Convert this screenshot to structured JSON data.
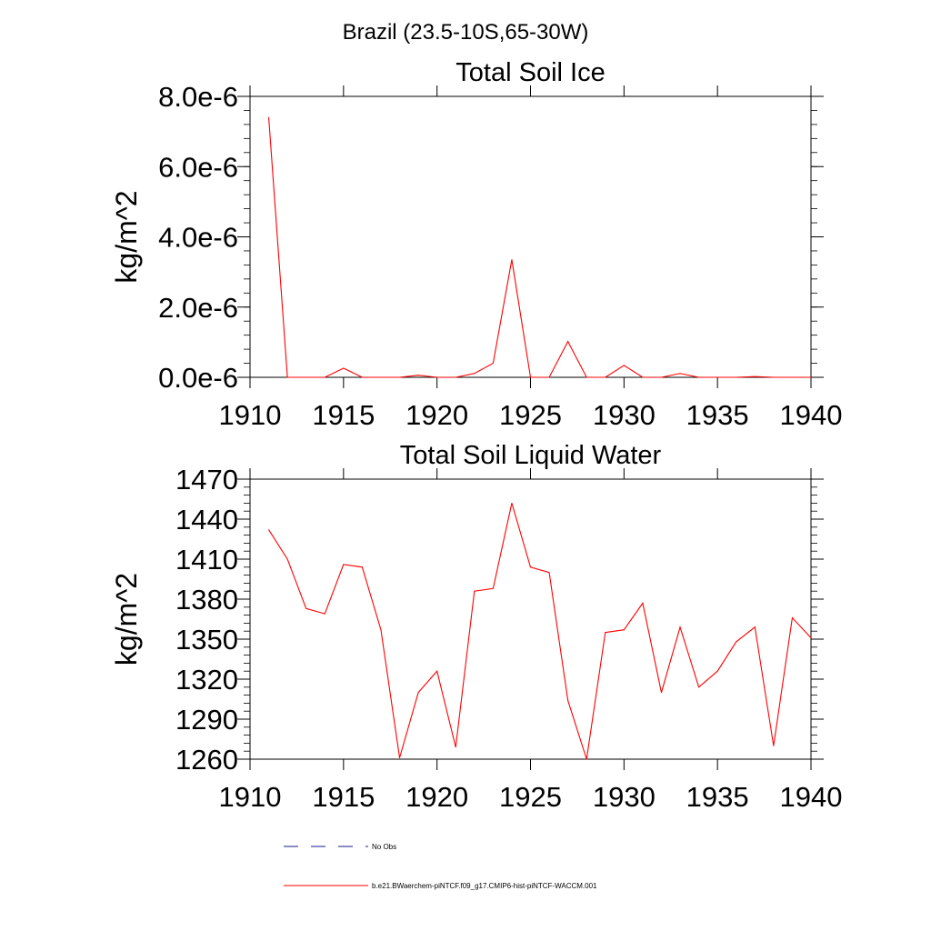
{
  "figure": {
    "title": "Brazil (23.5-10S,65-30W)"
  },
  "legend": {
    "entries": [
      {
        "label": "No Obs",
        "color": "#1a1a8c",
        "dash": "dashed"
      },
      {
        "label": "b.e21.BWaerchem-piNTCF.f09_g17.CMIP6-hist-piNTCF-WACCM.001",
        "color": "#ff0000",
        "dash": "solid"
      }
    ]
  },
  "chart_data": [
    {
      "type": "line",
      "title": "Total Soil Ice",
      "xlabel": "",
      "ylabel": "kg/m^2",
      "xlim": [
        1910,
        1940
      ],
      "ylim": [
        0,
        8e-06
      ],
      "x_ticks": [
        1910,
        1915,
        1920,
        1925,
        1930,
        1935,
        1940
      ],
      "x_tick_labels": [
        "1910",
        "1915",
        "1920",
        "1925",
        "1930",
        "1935",
        "1940"
      ],
      "y_ticks": [
        0,
        2e-06,
        4e-06,
        6e-06,
        8e-06
      ],
      "y_tick_labels": [
        "0.0e-6",
        "2.0e-6",
        "4.0e-6",
        "6.0e-6",
        "8.0e-6"
      ],
      "y_minor_step": 4e-07,
      "grid": false,
      "legend_position": "bottom",
      "series": [
        {
          "color": "#ff0000",
          "x": [
            1911,
            1912,
            1913,
            1914,
            1915,
            1916,
            1917,
            1918,
            1919,
            1920,
            1921,
            1922,
            1923,
            1924,
            1925,
            1926,
            1927,
            1928,
            1929,
            1930,
            1931,
            1932,
            1933,
            1934,
            1935,
            1936,
            1937,
            1938,
            1939,
            1940
          ],
          "values": [
            7.4e-06,
            0,
            0,
            0,
            2.6e-07,
            0,
            0,
            0,
            6e-08,
            0,
            0,
            1.1e-07,
            4e-07,
            3.35e-06,
            0,
            0,
            1.02e-06,
            0,
            0,
            3.4e-07,
            0,
            0,
            1.1e-07,
            0,
            0,
            0,
            2e-08,
            0,
            0,
            0
          ]
        }
      ]
    },
    {
      "type": "line",
      "title": "Total Soil Liquid Water",
      "xlabel": "",
      "ylabel": "kg/m^2",
      "xlim": [
        1910,
        1940
      ],
      "ylim": [
        1260,
        1470
      ],
      "x_ticks": [
        1910,
        1915,
        1920,
        1925,
        1930,
        1935,
        1940
      ],
      "x_tick_labels": [
        "1910",
        "1915",
        "1920",
        "1925",
        "1930",
        "1935",
        "1940"
      ],
      "y_ticks": [
        1260,
        1290,
        1320,
        1350,
        1380,
        1410,
        1440,
        1470
      ],
      "y_tick_labels": [
        "1260",
        "1290",
        "1320",
        "1350",
        "1380",
        "1410",
        "1440",
        "1470"
      ],
      "y_minor_step": 6,
      "grid": false,
      "legend_position": "bottom",
      "series": [
        {
          "color": "#ff0000",
          "x": [
            1911,
            1912,
            1913,
            1914,
            1915,
            1916,
            1917,
            1918,
            1919,
            1920,
            1921,
            1922,
            1923,
            1924,
            1925,
            1926,
            1927,
            1928,
            1929,
            1930,
            1931,
            1932,
            1933,
            1934,
            1935,
            1936,
            1937,
            1938,
            1939,
            1940
          ],
          "values": [
            1432,
            1410,
            1373,
            1369,
            1406,
            1404,
            1357,
            1261,
            1310,
            1326,
            1269,
            1386,
            1388,
            1452,
            1404,
            1400,
            1304,
            1260,
            1355,
            1357,
            1377,
            1310,
            1359,
            1314,
            1326,
            1348,
            1359,
            1270,
            1366,
            1351
          ]
        }
      ]
    }
  ]
}
